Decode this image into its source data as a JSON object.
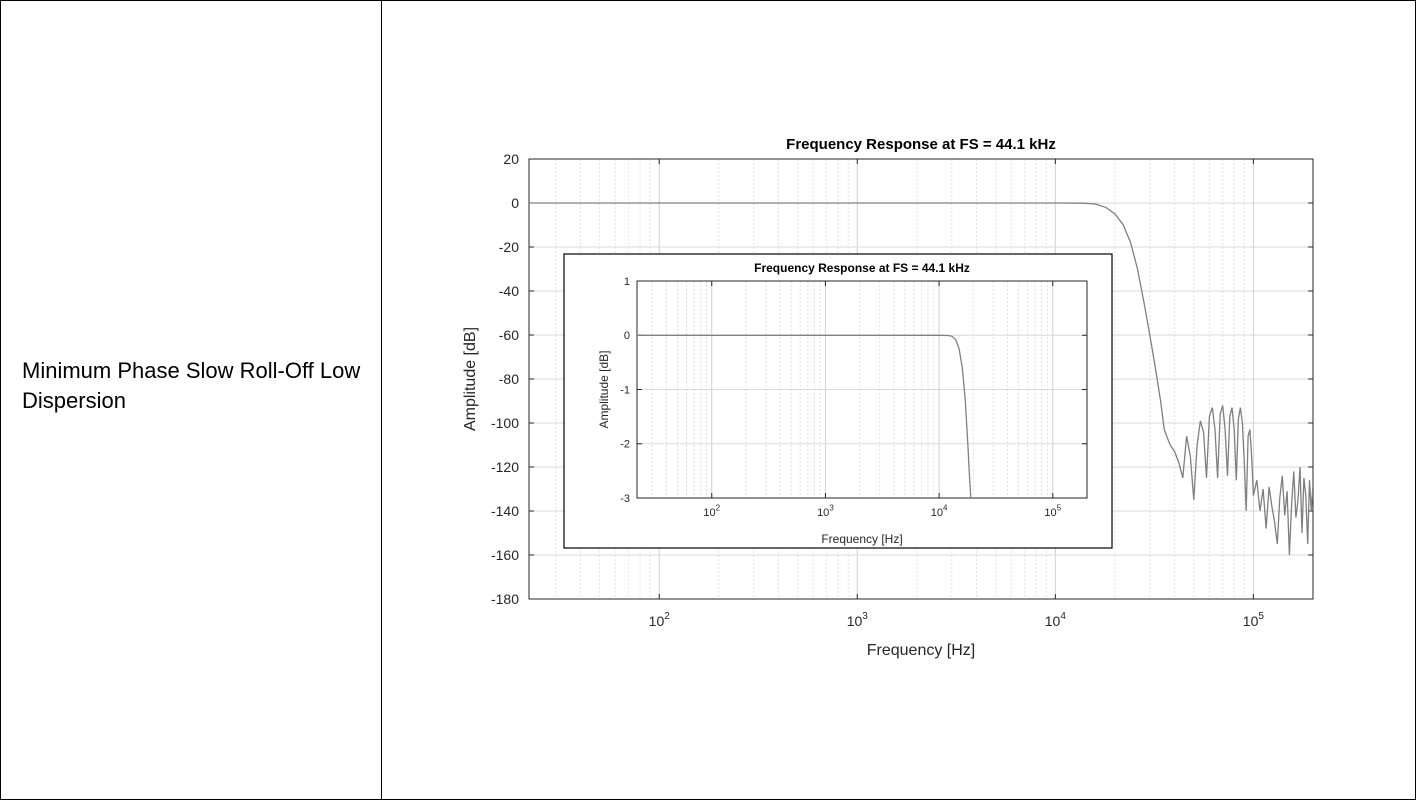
{
  "row_label": "Minimum Phase Slow Roll-Off Low Dispersion",
  "chart_data": [
    {
      "type": "line",
      "title": "Frequency Response at FS = 44.1 kHz",
      "xlabel": "Frequency [Hz]",
      "ylabel": "Amplitude [dB]",
      "xscale": "log",
      "xlim": [
        22,
        200000
      ],
      "ylim": [
        -180,
        20
      ],
      "yticks": [
        20,
        0,
        -20,
        -40,
        -60,
        -80,
        -100,
        -120,
        -140,
        -160,
        -180
      ],
      "ytick_labels": [
        "20",
        "0",
        "-20",
        "-40",
        "-60",
        "-80",
        "-100",
        "-120",
        "-140",
        "-160",
        "-180"
      ],
      "xticks": [
        100,
        1000,
        10000,
        100000
      ],
      "xtick_bases": [
        "10",
        "10",
        "10",
        "10"
      ],
      "xtick_exps": [
        "2",
        "3",
        "4",
        "5"
      ],
      "grid": true,
      "line_color": "#7f7f7f",
      "series": [
        {
          "x": [
            22,
            100,
            1000,
            10000,
            14000,
            16000,
            18000,
            20000,
            22050,
            24000,
            26000,
            28000,
            30000,
            32000,
            34000,
            35500,
            36500,
            38000,
            40000,
            42000,
            44000,
            46000,
            48000,
            50000,
            52000,
            54000,
            56000,
            58000,
            60000,
            62000,
            64000,
            66000,
            68000,
            70000,
            72000,
            74000,
            76000,
            78000,
            80000,
            82000,
            84000,
            86000,
            88000,
            90000,
            92000,
            94000,
            96000,
            98000,
            100000,
            104000,
            108000,
            112000,
            116000,
            120000,
            124000,
            128000,
            132000,
            136000,
            140000,
            144000,
            148000,
            152000,
            156000,
            160000,
            164000,
            168000,
            172000,
            176000,
            180000,
            184000,
            188000,
            192000,
            196000,
            200000
          ],
          "y": [
            0,
            0,
            0,
            0,
            -0.1,
            -0.5,
            -2,
            -5,
            -10,
            -18,
            -30,
            -45,
            -60,
            -75,
            -90,
            -103,
            -106,
            -110,
            -113,
            -118,
            -125,
            -106,
            -115,
            -135,
            -110,
            -99,
            -104,
            -125,
            -97,
            -93,
            -103,
            -125,
            -96,
            -92,
            -103,
            -124,
            -97,
            -93,
            -103,
            -126,
            -98,
            -93,
            -100,
            -118,
            -140,
            -106,
            -103,
            -115,
            -133,
            -126,
            -140,
            -130,
            -148,
            -129,
            -138,
            -145,
            -155,
            -134,
            -124,
            -142,
            -131,
            -160,
            -137,
            -122,
            -143,
            -135,
            -120,
            -150,
            -125,
            -133,
            -155,
            -126,
            -140,
            -128
          ]
        }
      ]
    },
    {
      "type": "line",
      "title": "Frequency Response at FS = 44.1 kHz",
      "xlabel": "Frequency [Hz]",
      "ylabel": "Amplitude [dB]",
      "xscale": "log",
      "xlim": [
        22,
        200000
      ],
      "ylim": [
        -3,
        1
      ],
      "yticks": [
        1,
        0,
        -1,
        -2,
        -3
      ],
      "ytick_labels": [
        "1",
        "0",
        "-1",
        "-2",
        "-3"
      ],
      "xticks": [
        100,
        1000,
        10000,
        100000
      ],
      "xtick_bases": [
        "10",
        "10",
        "10",
        "10"
      ],
      "xtick_exps": [
        "2",
        "3",
        "4",
        "5"
      ],
      "grid": true,
      "line_color": "#808080",
      "series": [
        {
          "x": [
            22,
            100,
            1000,
            5000,
            10000,
            12000,
            13000,
            14000,
            15000,
            16000,
            17000,
            18000,
            18500,
            19000
          ],
          "y": [
            0,
            0,
            0,
            0,
            0,
            -0.005,
            -0.02,
            -0.08,
            -0.25,
            -0.6,
            -1.2,
            -2.1,
            -2.6,
            -3
          ]
        }
      ]
    }
  ]
}
